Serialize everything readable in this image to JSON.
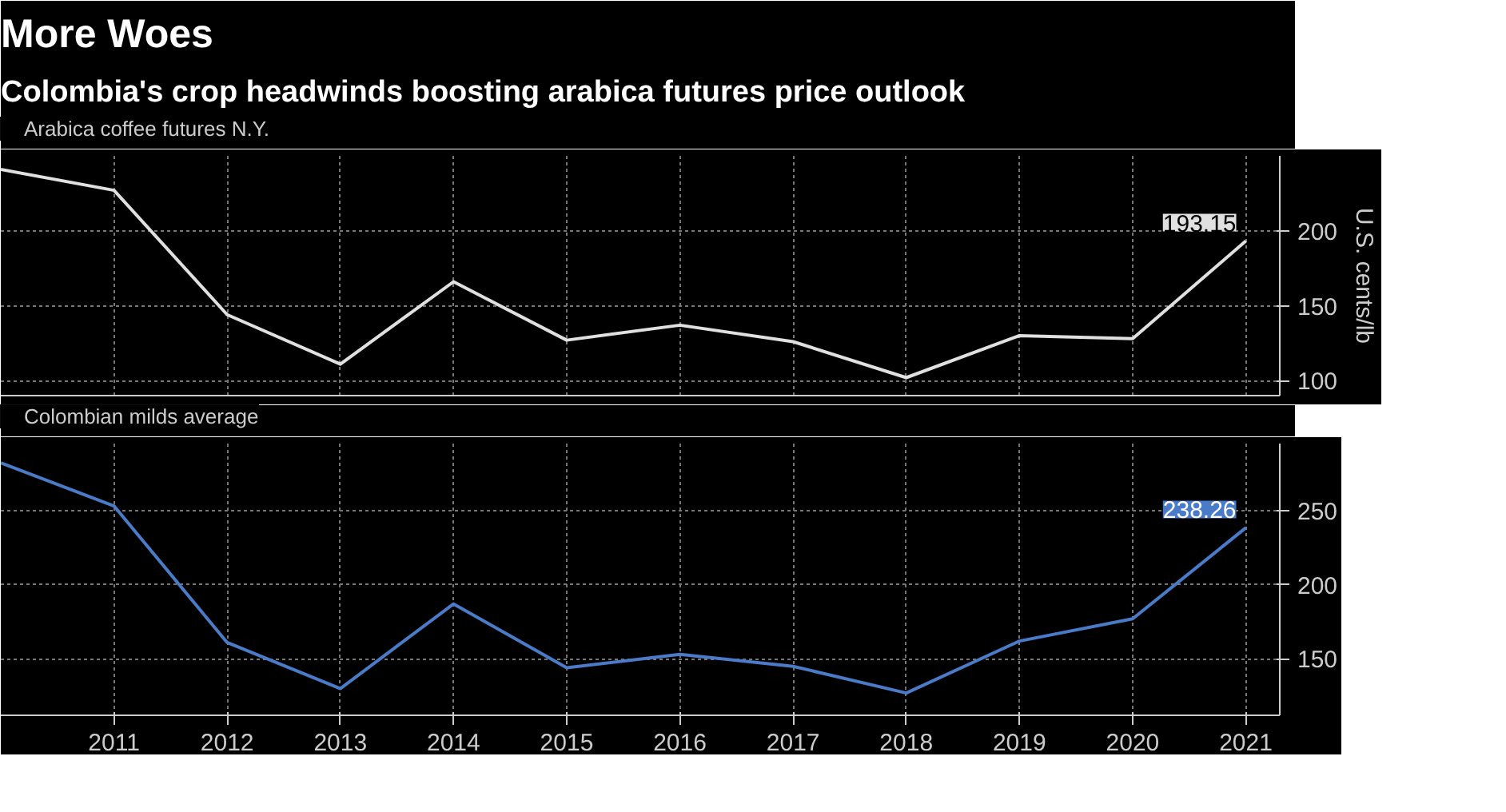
{
  "chart_data": [
    {
      "type": "line",
      "title": "More Woes",
      "subtitle": "Colombia's crop headwinds boosting arabica futures price outlook",
      "ylabel": "U.S. cents/lb",
      "x": [
        2010,
        2011,
        2012,
        2013,
        2014,
        2015,
        2016,
        2017,
        2018,
        2019,
        2020,
        2021
      ],
      "series": [
        {
          "name": "Arabica coffee futures N.Y.",
          "color": "#e0e0e0",
          "values": [
            241,
            227,
            144,
            111,
            166,
            127,
            137,
            126,
            102,
            130,
            128,
            193.15
          ],
          "value_labels": [
            null,
            null,
            null,
            null,
            null,
            null,
            null,
            null,
            null,
            null,
            null,
            "193.15"
          ]
        }
      ],
      "xlim": [
        2010,
        2021.3
      ],
      "xticks": [
        2011,
        2012,
        2013,
        2014,
        2015,
        2016,
        2017,
        2018,
        2019,
        2020,
        2021
      ],
      "ylim": [
        90,
        250
      ],
      "yticks": [
        100,
        150,
        200
      ],
      "tick_labels": "y",
      "grid": true,
      "legend": "top left",
      "marker": "none",
      "line_style": "solid"
    },
    {
      "type": "line",
      "x": [
        2010,
        2011,
        2012,
        2013,
        2014,
        2015,
        2016,
        2017,
        2018,
        2019,
        2020,
        2021
      ],
      "series": [
        {
          "name": "Colombian milds average",
          "color": "#4a7bc8",
          "values": [
            282,
            253,
            161,
            130,
            187,
            144,
            153,
            145,
            127,
            162,
            177,
            238.26
          ],
          "value_labels": [
            null,
            null,
            null,
            null,
            null,
            null,
            null,
            null,
            null,
            null,
            null,
            "238.26"
          ]
        }
      ],
      "xlim": [
        2010,
        2021.3
      ],
      "xticks": [
        2011,
        2012,
        2013,
        2014,
        2015,
        2016,
        2017,
        2018,
        2019,
        2020,
        2021
      ],
      "ylim": [
        112,
        295
      ],
      "yticks": [
        150,
        200,
        250
      ],
      "grid": true,
      "legend": "top left",
      "marker": "none",
      "line_style": "solid"
    }
  ]
}
